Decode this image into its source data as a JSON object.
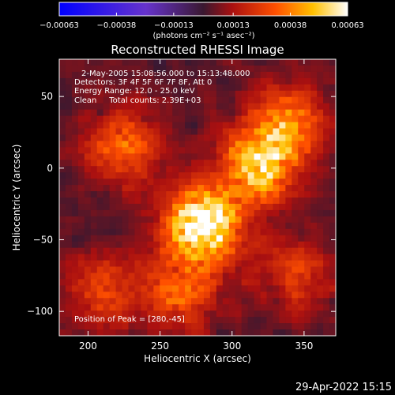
{
  "chart_data": {
    "type": "heatmap",
    "title": "Reconstructed RHESSI Image",
    "xlabel": "Heliocentric X (arcsec)",
    "ylabel": "Heliocentric Y (arcsec)",
    "xlim": [
      180,
      372
    ],
    "ylim": [
      -117,
      76
    ],
    "x_ticks": [
      200,
      250,
      300,
      350
    ],
    "y_ticks": [
      50,
      0,
      -50,
      -100
    ],
    "colorbar": {
      "range": [
        -0.00063,
        0.00063
      ],
      "tick_values": [
        -0.00063,
        -0.00038,
        -0.00013,
        0.00013,
        0.00038,
        0.00063
      ],
      "tick_labels": [
        "-0.00063",
        "-0.00038",
        "-0.00013",
        "0.00013",
        "0.00038",
        "0.00063"
      ],
      "unit_label": "(photons cm⁻² s⁻¹ asec⁻²)"
    },
    "info_lines": [
      "2-May-2005 15:08:56.000 to 15:13:48.000",
      "Detectors: 3F 4F 5F 6F 7F 8F, Att 0",
      "Energy Range: 12.0 - 25.0 keV",
      "Clean     Total counts: 2.39E+03"
    ],
    "peak_text": "Position of Peak = [280,-45]",
    "peak": [
      280,
      -45
    ],
    "sources": [
      {
        "x": 280,
        "y": -40,
        "value": 0.00063
      },
      {
        "x": 318,
        "y": 0,
        "value": 0.00045
      },
      {
        "x": 338,
        "y": 30,
        "value": 0.00035
      },
      {
        "x": 225,
        "y": 15,
        "value": 0.0003
      },
      {
        "x": 265,
        "y": -85,
        "value": 0.00028
      },
      {
        "x": 210,
        "y": -85,
        "value": 0.00022
      },
      {
        "x": 345,
        "y": -75,
        "value": 0.0002
      }
    ],
    "grid": false
  },
  "footer": {
    "timestamp": "29-Apr-2022 15:15"
  }
}
